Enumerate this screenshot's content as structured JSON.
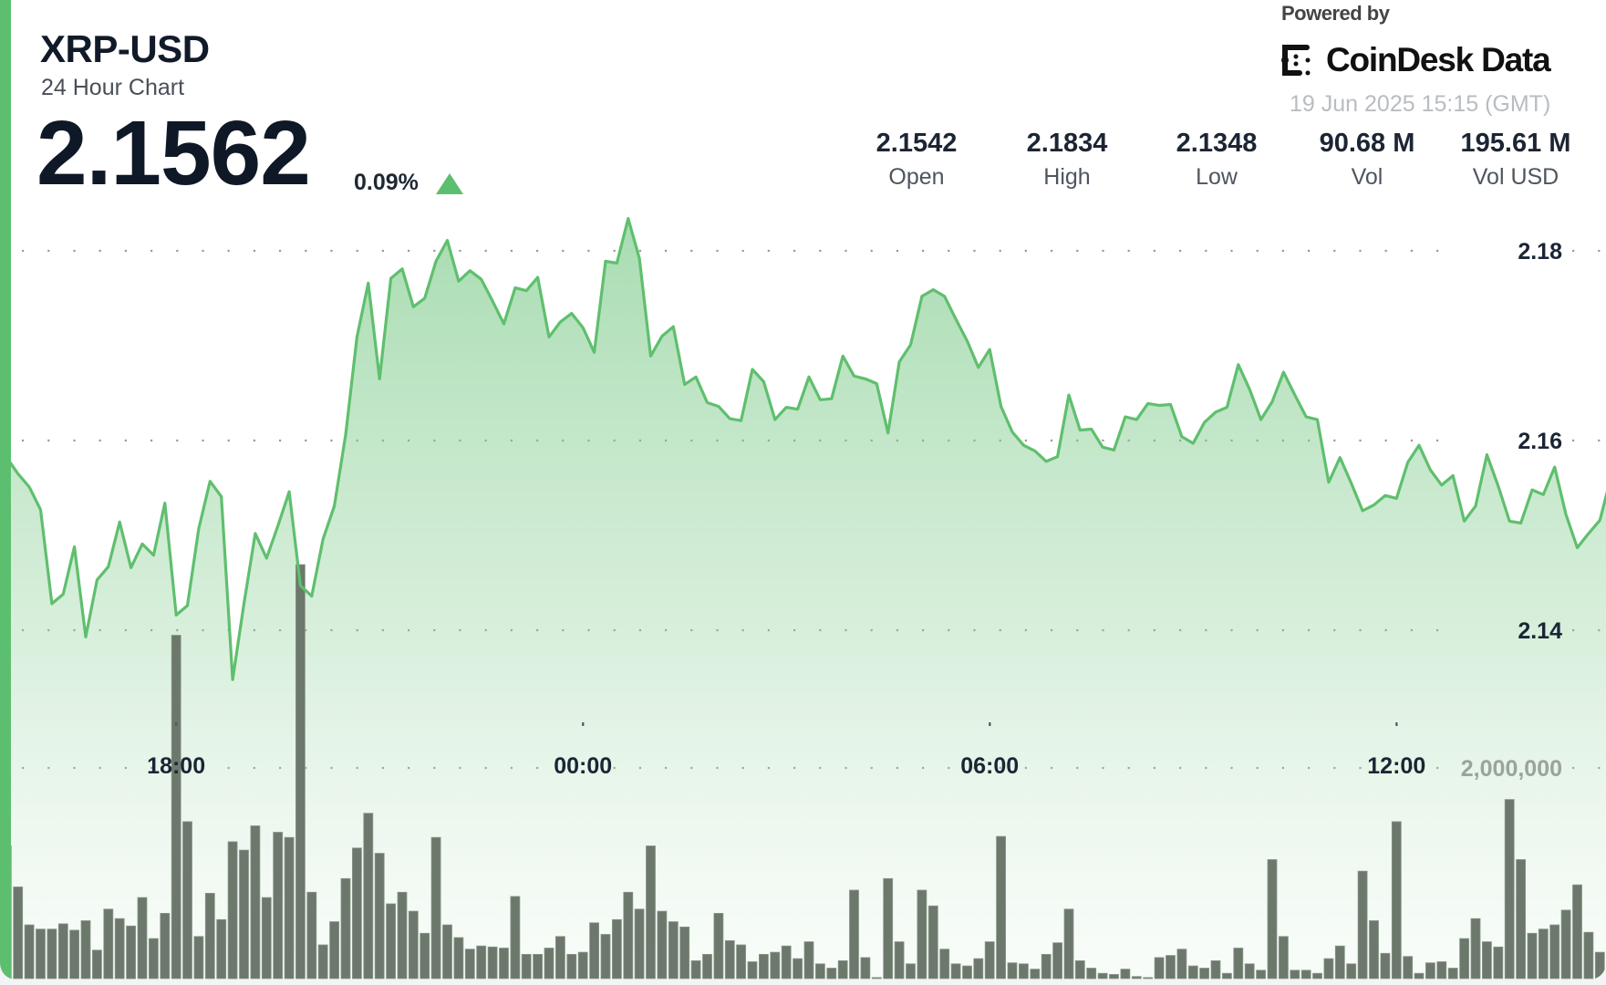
{
  "header": {
    "pair": "XRP-USD",
    "subtitle": "24 Hour Chart",
    "price": "2.1562",
    "change": "0.09%",
    "change_direction": "up",
    "change_icon": "triangle-up-icon"
  },
  "stats": [
    {
      "value": "2.1542",
      "label": "Open"
    },
    {
      "value": "2.1834",
      "label": "High"
    },
    {
      "value": "2.1348",
      "label": "Low"
    },
    {
      "value": "90.68 M",
      "label": "Vol"
    },
    {
      "value": "195.61 M",
      "label": "Vol USD"
    }
  ],
  "branding": {
    "powered_by": "Powered by",
    "logo_text": "CoinDesk Data",
    "timestamp": "19 Jun 2025 15:15 (GMT)"
  },
  "colors": {
    "accent": "#5cbf6f",
    "line": "#5fbf6e",
    "volume_bar": "#6b786b",
    "text": "#111a28"
  },
  "chart_data": {
    "type": "area",
    "x_start": "15:30",
    "x_interval": "10 min",
    "x_ticks": [
      "18:00",
      "00:00",
      "06:00",
      "12:00"
    ],
    "y_ticks": [
      {
        "value": 2.14,
        "label": "2.14"
      },
      {
        "value": 2.16,
        "label": "2.16"
      },
      {
        "value": 2.18,
        "label": "2.18"
      }
    ],
    "grid": "dotted horizontal",
    "series": [
      {
        "type": "area",
        "values": [
          2.1582,
          2.1565,
          2.1551,
          2.1527,
          2.1428,
          2.1438,
          2.1488,
          2.1393,
          2.1453,
          2.1467,
          2.1514,
          2.1466,
          2.1491,
          2.1479,
          2.1534,
          2.1416,
          2.1426,
          2.1507,
          2.1557,
          2.1541,
          2.1348,
          2.1428,
          2.1502,
          2.1476,
          2.151,
          2.1546,
          2.1447,
          2.1436,
          2.1496,
          2.1531,
          2.1606,
          2.1709,
          2.1766,
          2.1665,
          2.1771,
          2.1781,
          2.1741,
          2.175,
          2.1789,
          2.1811,
          2.1768,
          2.1779,
          2.177,
          2.1747,
          2.1723,
          2.1761,
          2.1758,
          2.1772,
          2.1709,
          2.1725,
          2.1734,
          2.1719,
          2.1693,
          2.1789,
          2.1787,
          2.1834,
          2.1792,
          2.1689,
          2.171,
          2.172,
          2.1659,
          2.1667,
          2.164,
          2.1636,
          2.1623,
          2.1621,
          2.1675,
          2.1662,
          2.1622,
          2.1635,
          2.1633,
          2.1667,
          2.1643,
          2.1644,
          2.1689,
          2.1668,
          2.1665,
          2.166,
          2.1608,
          2.1683,
          2.1701,
          2.1752,
          2.1759,
          2.1752,
          2.1728,
          2.1705,
          2.1677,
          2.1696,
          2.1636,
          2.1609,
          2.1595,
          2.1589,
          2.1578,
          2.1583,
          2.1648,
          2.1611,
          2.1612,
          2.1593,
          2.159,
          2.1625,
          2.1622,
          2.1639,
          2.1637,
          2.1638,
          2.1604,
          2.1597,
          2.1619,
          2.163,
          2.1635,
          2.168,
          2.1654,
          2.1622,
          2.1641,
          2.1672,
          2.1648,
          2.1625,
          2.1622,
          2.1556,
          2.1582,
          2.1555,
          2.1526,
          2.1532,
          2.1542,
          2.1539,
          2.1577,
          2.1595,
          2.1569,
          2.1553,
          2.1563,
          2.1515,
          2.1531,
          2.1585,
          2.1552,
          2.1515,
          2.1513,
          2.1548,
          2.1543,
          2.1572,
          2.1522,
          2.1487,
          2.1502,
          2.1516,
          2.1562
        ]
      },
      {
        "type": "bar",
        "axis_tick": {
          "value": 2000000,
          "label": "2,000,000"
        },
        "values": [
          1260000,
          870000,
          510000,
          470000,
          470000,
          520000,
          460000,
          550000,
          270000,
          660000,
          570000,
          500000,
          770000,
          380000,
          620000,
          3260000,
          1490000,
          400000,
          810000,
          560000,
          1300000,
          1220000,
          1450000,
          770000,
          1390000,
          1340000,
          3930000,
          820000,
          320000,
          540000,
          950000,
          1240000,
          1570000,
          1190000,
          710000,
          820000,
          640000,
          430000,
          1340000,
          510000,
          390000,
          280000,
          310000,
          300000,
          290000,
          780000,
          230000,
          230000,
          290000,
          400000,
          230000,
          250000,
          530000,
          420000,
          560000,
          820000,
          660000,
          1260000,
          640000,
          540000,
          490000,
          170000,
          230000,
          620000,
          360000,
          320000,
          160000,
          230000,
          250000,
          310000,
          190000,
          350000,
          140000,
          100000,
          170000,
          840000,
          200000,
          10000,
          950000,
          350000,
          140000,
          840000,
          690000,
          280000,
          140000,
          120000,
          190000,
          350000,
          1350000,
          150000,
          140000,
          90000,
          230000,
          340000,
          660000,
          170000,
          100000,
          50000,
          40000,
          90000,
          20000,
          10000,
          200000,
          220000,
          280000,
          120000,
          100000,
          170000,
          50000,
          290000,
          140000,
          80000,
          1130000,
          400000,
          80000,
          80000,
          50000,
          190000,
          310000,
          140000,
          1020000,
          550000,
          240000,
          1490000,
          210000,
          50000,
          150000,
          160000,
          100000,
          380000,
          570000,
          350000,
          300000,
          1700000,
          1130000,
          430000,
          470000,
          510000,
          650000,
          890000,
          440000,
          250000,
          140000
        ]
      }
    ]
  }
}
